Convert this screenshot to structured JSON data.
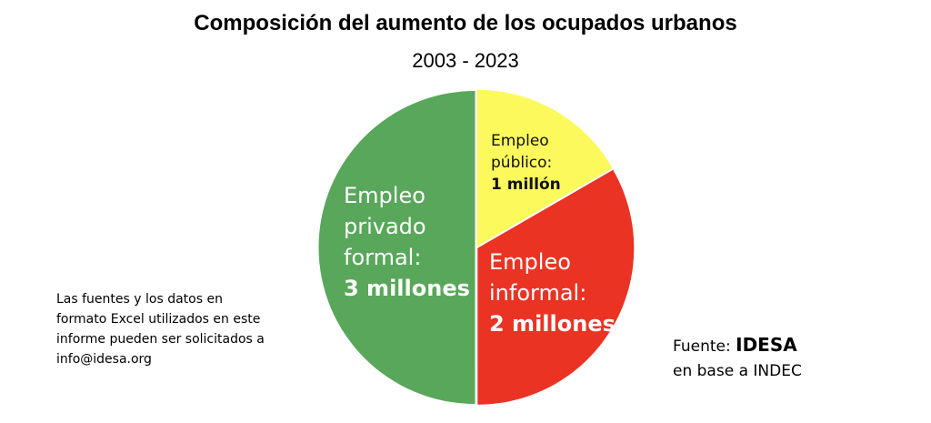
{
  "title": "Composición del aumento de los ocupados urbanos",
  "subtitle": "2003 - 2023",
  "chart_data": {
    "type": "pie",
    "title": "Composición del aumento de los ocupados urbanos",
    "subtitle": "2003 - 2023",
    "unit": "millones",
    "slices": [
      {
        "name": "Empleo público",
        "value": 1,
        "color": "#fbf95c",
        "label_lines": [
          "Empleo",
          "público:"
        ],
        "value_label": "1 millón",
        "text_color": "#111111"
      },
      {
        "name": "Empleo informal",
        "value": 2,
        "color": "#ea3323",
        "label_lines": [
          "Empleo",
          "informal:"
        ],
        "value_label": "2 millones",
        "text_color": "#ffffff"
      },
      {
        "name": "Empleo privado formal",
        "value": 3,
        "color": "#58a75a",
        "label_lines": [
          "Empleo",
          "privado",
          "formal:"
        ],
        "value_label": "3 millones",
        "text_color": "#ffffff"
      }
    ]
  },
  "note": "Las fuentes y los datos en formato Excel utilizados en este informe pueden ser solicitados a info@idesa.org",
  "source": {
    "prefix": "Fuente: ",
    "brand": "IDESA",
    "line2": "en base a INDEC"
  }
}
